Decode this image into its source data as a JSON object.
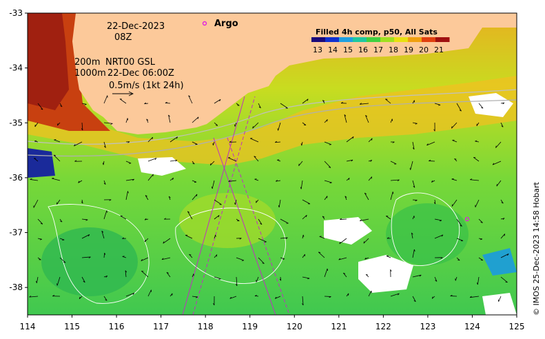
{
  "map": {
    "date": "22-Dec-2023",
    "time": "08Z",
    "depth_line1": "200m",
    "depth_line2": "1000m",
    "product": "NRT00 GSL",
    "product_time": "22-Dec 06:00Z",
    "scale_label": "0.5m/s (1kt 24h)",
    "argo_label": "Argo",
    "credit": "© IMOS 25-Dec-2023 14:58 Hobart",
    "colors": {
      "land": "#FCC99A",
      "frame": "#000000",
      "argo_marker": "#E020E0",
      "track": "#C030C0"
    }
  },
  "legend": {
    "title": "Filled 4h comp, p50, All Sats",
    "ticks": [
      "13",
      "14",
      "15",
      "16",
      "17",
      "18",
      "19",
      "20",
      "21"
    ],
    "colors": [
      "#1a0a7a",
      "#1030d0",
      "#20a0e0",
      "#20c8a0",
      "#40d040",
      "#a0e020",
      "#e8e010",
      "#f0a010",
      "#e04010",
      "#a01010"
    ]
  },
  "axes": {
    "x_ticks": [
      "114",
      "115",
      "116",
      "117",
      "118",
      "119",
      "120",
      "121",
      "122",
      "123",
      "124",
      "125"
    ],
    "y_ticks": [
      "-33",
      "-34",
      "-35",
      "-36",
      "-37",
      "-38"
    ],
    "x_range": [
      114,
      125
    ],
    "y_range": [
      -38.5,
      -33
    ]
  }
}
